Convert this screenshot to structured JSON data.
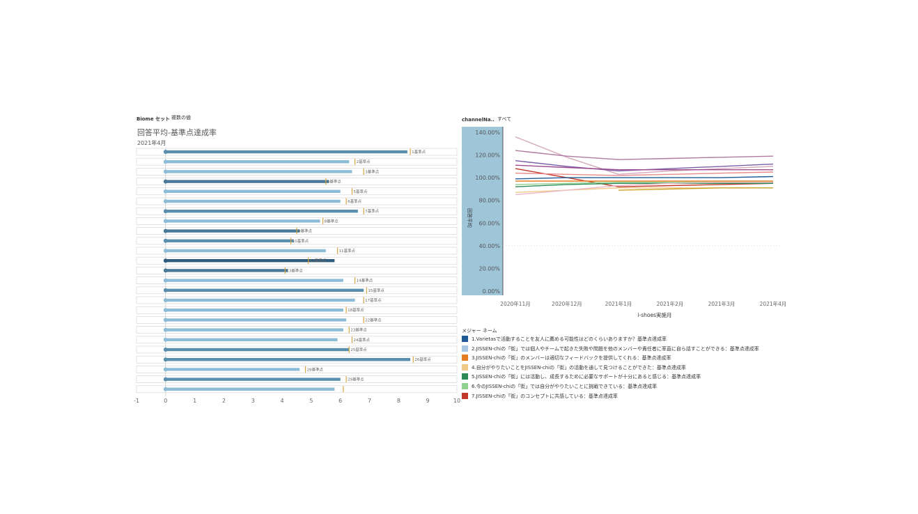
{
  "header": {
    "biome_label": "Biome セット",
    "biome_value": "複数の値",
    "title": "回答平均-基準点達成率",
    "subtitle": "2021年4月",
    "channel_label": "channelNa..",
    "channel_value": "すべて"
  },
  "chart_data": [
    {
      "type": "bar",
      "xlim": [
        -1,
        10
      ],
      "xticks": [
        "-1",
        "0",
        "1",
        "2",
        "3",
        "4",
        "5",
        "6",
        "7",
        "8",
        "9",
        "10"
      ],
      "bars": [
        {
          "value": 8.3,
          "ref": 8.4,
          "label": "1基準点",
          "color": "#5b8fae"
        },
        {
          "value": 6.3,
          "ref": 6.5,
          "label": "2基準点",
          "color": "#8dbdd6"
        },
        {
          "value": 6.4,
          "ref": 6.8,
          "label": "3基準点",
          "color": "#8dbdd6"
        },
        {
          "value": 5.6,
          "ref": 5.5,
          "label": "4基準点",
          "color": "#4a7a99"
        },
        {
          "value": 6.0,
          "ref": 6.4,
          "label": "5基準点",
          "color": "#8dbdd6"
        },
        {
          "value": 6.0,
          "ref": 6.2,
          "label": "6基準点",
          "color": "#8dbdd6"
        },
        {
          "value": 6.6,
          "ref": 6.8,
          "label": "7基準点",
          "color": "#5b8fae"
        },
        {
          "value": 5.3,
          "ref": 5.4,
          "label": "8基準点",
          "color": "#8dbdd6"
        },
        {
          "value": 4.6,
          "ref": 4.5,
          "label": "9基準点",
          "color": "#4a7a99"
        },
        {
          "value": 4.4,
          "ref": 4.3,
          "label": "10基準点",
          "color": "#5b8fae"
        },
        {
          "value": 5.5,
          "ref": 5.9,
          "label": "11基準点",
          "color": "#8dbdd6"
        },
        {
          "value": 5.8,
          "ref": 4.9,
          "label": "12基準点",
          "color": "#2f5d7e"
        },
        {
          "value": 4.2,
          "ref": 4.1,
          "label": "13基準点",
          "color": "#4a7a99"
        },
        {
          "value": 6.1,
          "ref": 6.5,
          "label": "14基準点",
          "color": "#8dbdd6"
        },
        {
          "value": 6.8,
          "ref": 6.9,
          "label": "15基準点",
          "color": "#5b8fae"
        },
        {
          "value": 6.5,
          "ref": 6.8,
          "label": "17基準点",
          "color": "#8dbdd6"
        },
        {
          "value": 6.1,
          "ref": 6.2,
          "label": "18基準点",
          "color": "#8dbdd6"
        },
        {
          "value": 6.2,
          "ref": 6.8,
          "label": "22基準点",
          "color": "#8dbdd6"
        },
        {
          "value": 6.1,
          "ref": 6.3,
          "label": "23基準点",
          "color": "#8dbdd6"
        },
        {
          "value": 5.9,
          "ref": 6.4,
          "label": "24基準点",
          "color": "#8dbdd6"
        },
        {
          "value": 6.3,
          "ref": 6.3,
          "label": "25基準点",
          "color": "#5b8fae"
        },
        {
          "value": 8.4,
          "ref": 8.5,
          "label": "26基準点",
          "color": "#5b8fae"
        },
        {
          "value": 4.6,
          "ref": 4.8,
          "label": "28基準点",
          "color": "#8dbdd6"
        },
        {
          "value": 6.0,
          "ref": 6.2,
          "label": "29基準点",
          "color": "#5b8fae"
        },
        {
          "value": 5.8,
          "ref": 6.1,
          "label": "",
          "color": "#8dbdd6"
        }
      ]
    },
    {
      "type": "line",
      "xlabel": "i-shoes実施月",
      "ylabel": "回答平均",
      "ylim": [
        0,
        140
      ],
      "yticks": [
        "0.00%",
        "20.00%",
        "40.00%",
        "60.00%",
        "80.00%",
        "100.00%",
        "120.00%",
        "140.00%"
      ],
      "x": [
        "2020年11月",
        "2020年12月",
        "2021年1月",
        "2021年2月",
        "2021年3月",
        "2021年4月"
      ],
      "series": [
        {
          "color": "#d4a8bd",
          "values": [
            136,
            118,
            103,
            106,
            108,
            110
          ]
        },
        {
          "color": "#b07aa1",
          "values": [
            124,
            119,
            116,
            117,
            118,
            119
          ]
        },
        {
          "color": "#7b5ea7",
          "values": [
            115,
            110,
            106,
            108,
            110,
            112
          ]
        },
        {
          "color": "#9c4a8f",
          "values": [
            111,
            109,
            107,
            107,
            107,
            107
          ]
        },
        {
          "color": "#c0392b",
          "values": [
            108,
            100,
            92,
            93,
            94,
            95
          ]
        },
        {
          "color": "#e88a8a",
          "values": [
            104,
            103,
            102,
            103,
            104,
            105
          ]
        },
        {
          "color": "#1f5a96",
          "values": [
            99,
            100,
            100,
            100,
            100,
            101
          ]
        },
        {
          "color": "#e67e22",
          "values": [
            97,
            97,
            97,
            97,
            97,
            97
          ]
        },
        {
          "color": "#2e8b57",
          "values": [
            92,
            94,
            95,
            95,
            95,
            95
          ]
        },
        {
          "color": "#8fd18f",
          "values": [
            94,
            95,
            96,
            96,
            96,
            96
          ]
        },
        {
          "color": "#f0c987",
          "values": [
            87,
            89,
            91,
            91,
            91,
            91
          ]
        },
        {
          "color": "#e8b9c6",
          "values": [
            85,
            89,
            93,
            95,
            96,
            96
          ]
        },
        {
          "color": "#c9a227",
          "values": [
            null,
            null,
            89,
            90,
            91,
            91
          ]
        }
      ]
    }
  ],
  "legend": {
    "title": "メジャー ネーム",
    "items": [
      {
        "color": "#1f5a96",
        "label": "1.Varietasで活動することを友人に薦める可能性はどのくらいありますか？基準点達成率"
      },
      {
        "color": "#a9c6e3",
        "label": "2.JISSEN-chiの「街」では個人やチームで起きた失敗や問題を他のメンバーや責任者に率直に自ら話すことができる：基準点達成率"
      },
      {
        "color": "#e67e22",
        "label": "3.JISSEN-chiの「街」のメンバーは適切なフィードバックを提供してくれる：基準点達成率"
      },
      {
        "color": "#f0c987",
        "label": "4.自分がやりたいことをJISSEN-chiの「街」の活動を通して見つけることができた：基準点達成率"
      },
      {
        "color": "#2e8b57",
        "label": "5.JISSEN-chiの「街」には活動し、成長するために必要なサポートが十分にあると感じる：基準点達成率"
      },
      {
        "color": "#8fd18f",
        "label": "6.今のJISSEN-chiの「街」では自分がやりたいことに挑戦できている：基準点達成率"
      },
      {
        "color": "#c0392b",
        "label": "7.JISSEN-chiの「街」のコンセプトに共感している：基準点達成率"
      }
    ]
  }
}
